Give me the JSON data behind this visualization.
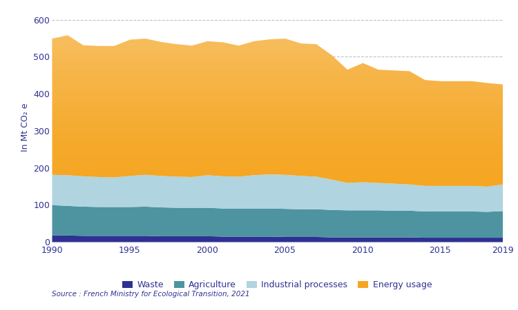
{
  "years": [
    1990,
    1991,
    1992,
    1993,
    1994,
    1995,
    1996,
    1997,
    1998,
    1999,
    2000,
    2001,
    2002,
    2003,
    2004,
    2005,
    2006,
    2007,
    2008,
    2009,
    2010,
    2011,
    2012,
    2013,
    2014,
    2015,
    2016,
    2017,
    2018,
    2019
  ],
  "waste": [
    18,
    18,
    17,
    17,
    17,
    17,
    17,
    16,
    16,
    16,
    16,
    15,
    15,
    15,
    15,
    14,
    14,
    14,
    13,
    13,
    13,
    13,
    13,
    13,
    12,
    12,
    12,
    12,
    12,
    12
  ],
  "agriculture": [
    82,
    80,
    79,
    78,
    78,
    78,
    79,
    78,
    77,
    77,
    77,
    76,
    76,
    76,
    76,
    76,
    75,
    75,
    74,
    73,
    73,
    73,
    72,
    72,
    71,
    71,
    71,
    71,
    70,
    72
  ],
  "industrial": [
    82,
    83,
    82,
    81,
    80,
    84,
    86,
    85,
    84,
    83,
    88,
    87,
    86,
    90,
    92,
    92,
    90,
    88,
    82,
    74,
    76,
    74,
    73,
    71,
    69,
    69,
    69,
    69,
    68,
    72
  ],
  "energy": [
    368,
    378,
    354,
    354,
    355,
    368,
    368,
    362,
    358,
    355,
    362,
    362,
    354,
    362,
    365,
    368,
    358,
    358,
    336,
    306,
    322,
    306,
    306,
    306,
    286,
    283,
    283,
    283,
    280,
    270
  ],
  "colors": {
    "waste": "#2e3192",
    "agriculture": "#4d94a0",
    "industrial": "#b0d4e0",
    "energy": "#f5a623",
    "energy_light": "#fad9b0"
  },
  "ylabel": "In Mt CO₂ e",
  "ylim": [
    0,
    620
  ],
  "yticks": [
    0,
    100,
    200,
    300,
    400,
    500,
    600
  ],
  "xticks": [
    1990,
    1995,
    2000,
    2005,
    2010,
    2015,
    2019
  ],
  "legend_labels": [
    "Waste",
    "Agriculture",
    "Industrial processes",
    "Energy usage"
  ],
  "source": "Source : French Ministry for Ecological Transition, 2021",
  "background_color": "#ffffff",
  "grid_color": "#bbbbbb",
  "text_color": "#2e3192"
}
